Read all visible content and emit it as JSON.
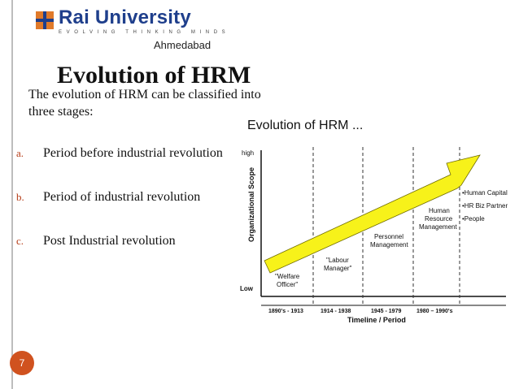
{
  "logo": {
    "name": "Rai University",
    "tagline": "EVOLVING  THINKING  MINDS",
    "campus": "Ahmedabad"
  },
  "title": "Evolution of HRM",
  "intro": "The evolution of HRM can be classified into three stages:",
  "bullets": [
    {
      "letter": "a.",
      "text": "Period before industrial revolution"
    },
    {
      "letter": "b.",
      "text": "Period of industrial revolution"
    },
    {
      "letter": "c.",
      "text": "Post  Industrial revolution"
    }
  ],
  "chart": {
    "title": "Evolution of HRM ...",
    "y_axis_label": "Organizational Scope",
    "y_high": "high",
    "y_low": "Low",
    "x_axis_label": "Timeline / Period",
    "periods": [
      "1890's - 1913",
      "1914 - 1938",
      "1945 - 1979",
      "1980 – 1990's"
    ],
    "stages": [
      {
        "lines": [
          "\"Welfare",
          "Officer\""
        ]
      },
      {
        "lines": [
          "\"Labour",
          "Manager\""
        ]
      },
      {
        "lines": [
          "Personnel",
          "Management"
        ]
      },
      {
        "lines": [
          "Human",
          "Resource",
          "Management"
        ]
      }
    ],
    "roles": [
      "•Human Capital",
      "•HR Biz Partner",
      "•People"
    ],
    "arrow_color": "#f7f21a"
  },
  "page_number": "7",
  "accent_color": "#d0521f"
}
